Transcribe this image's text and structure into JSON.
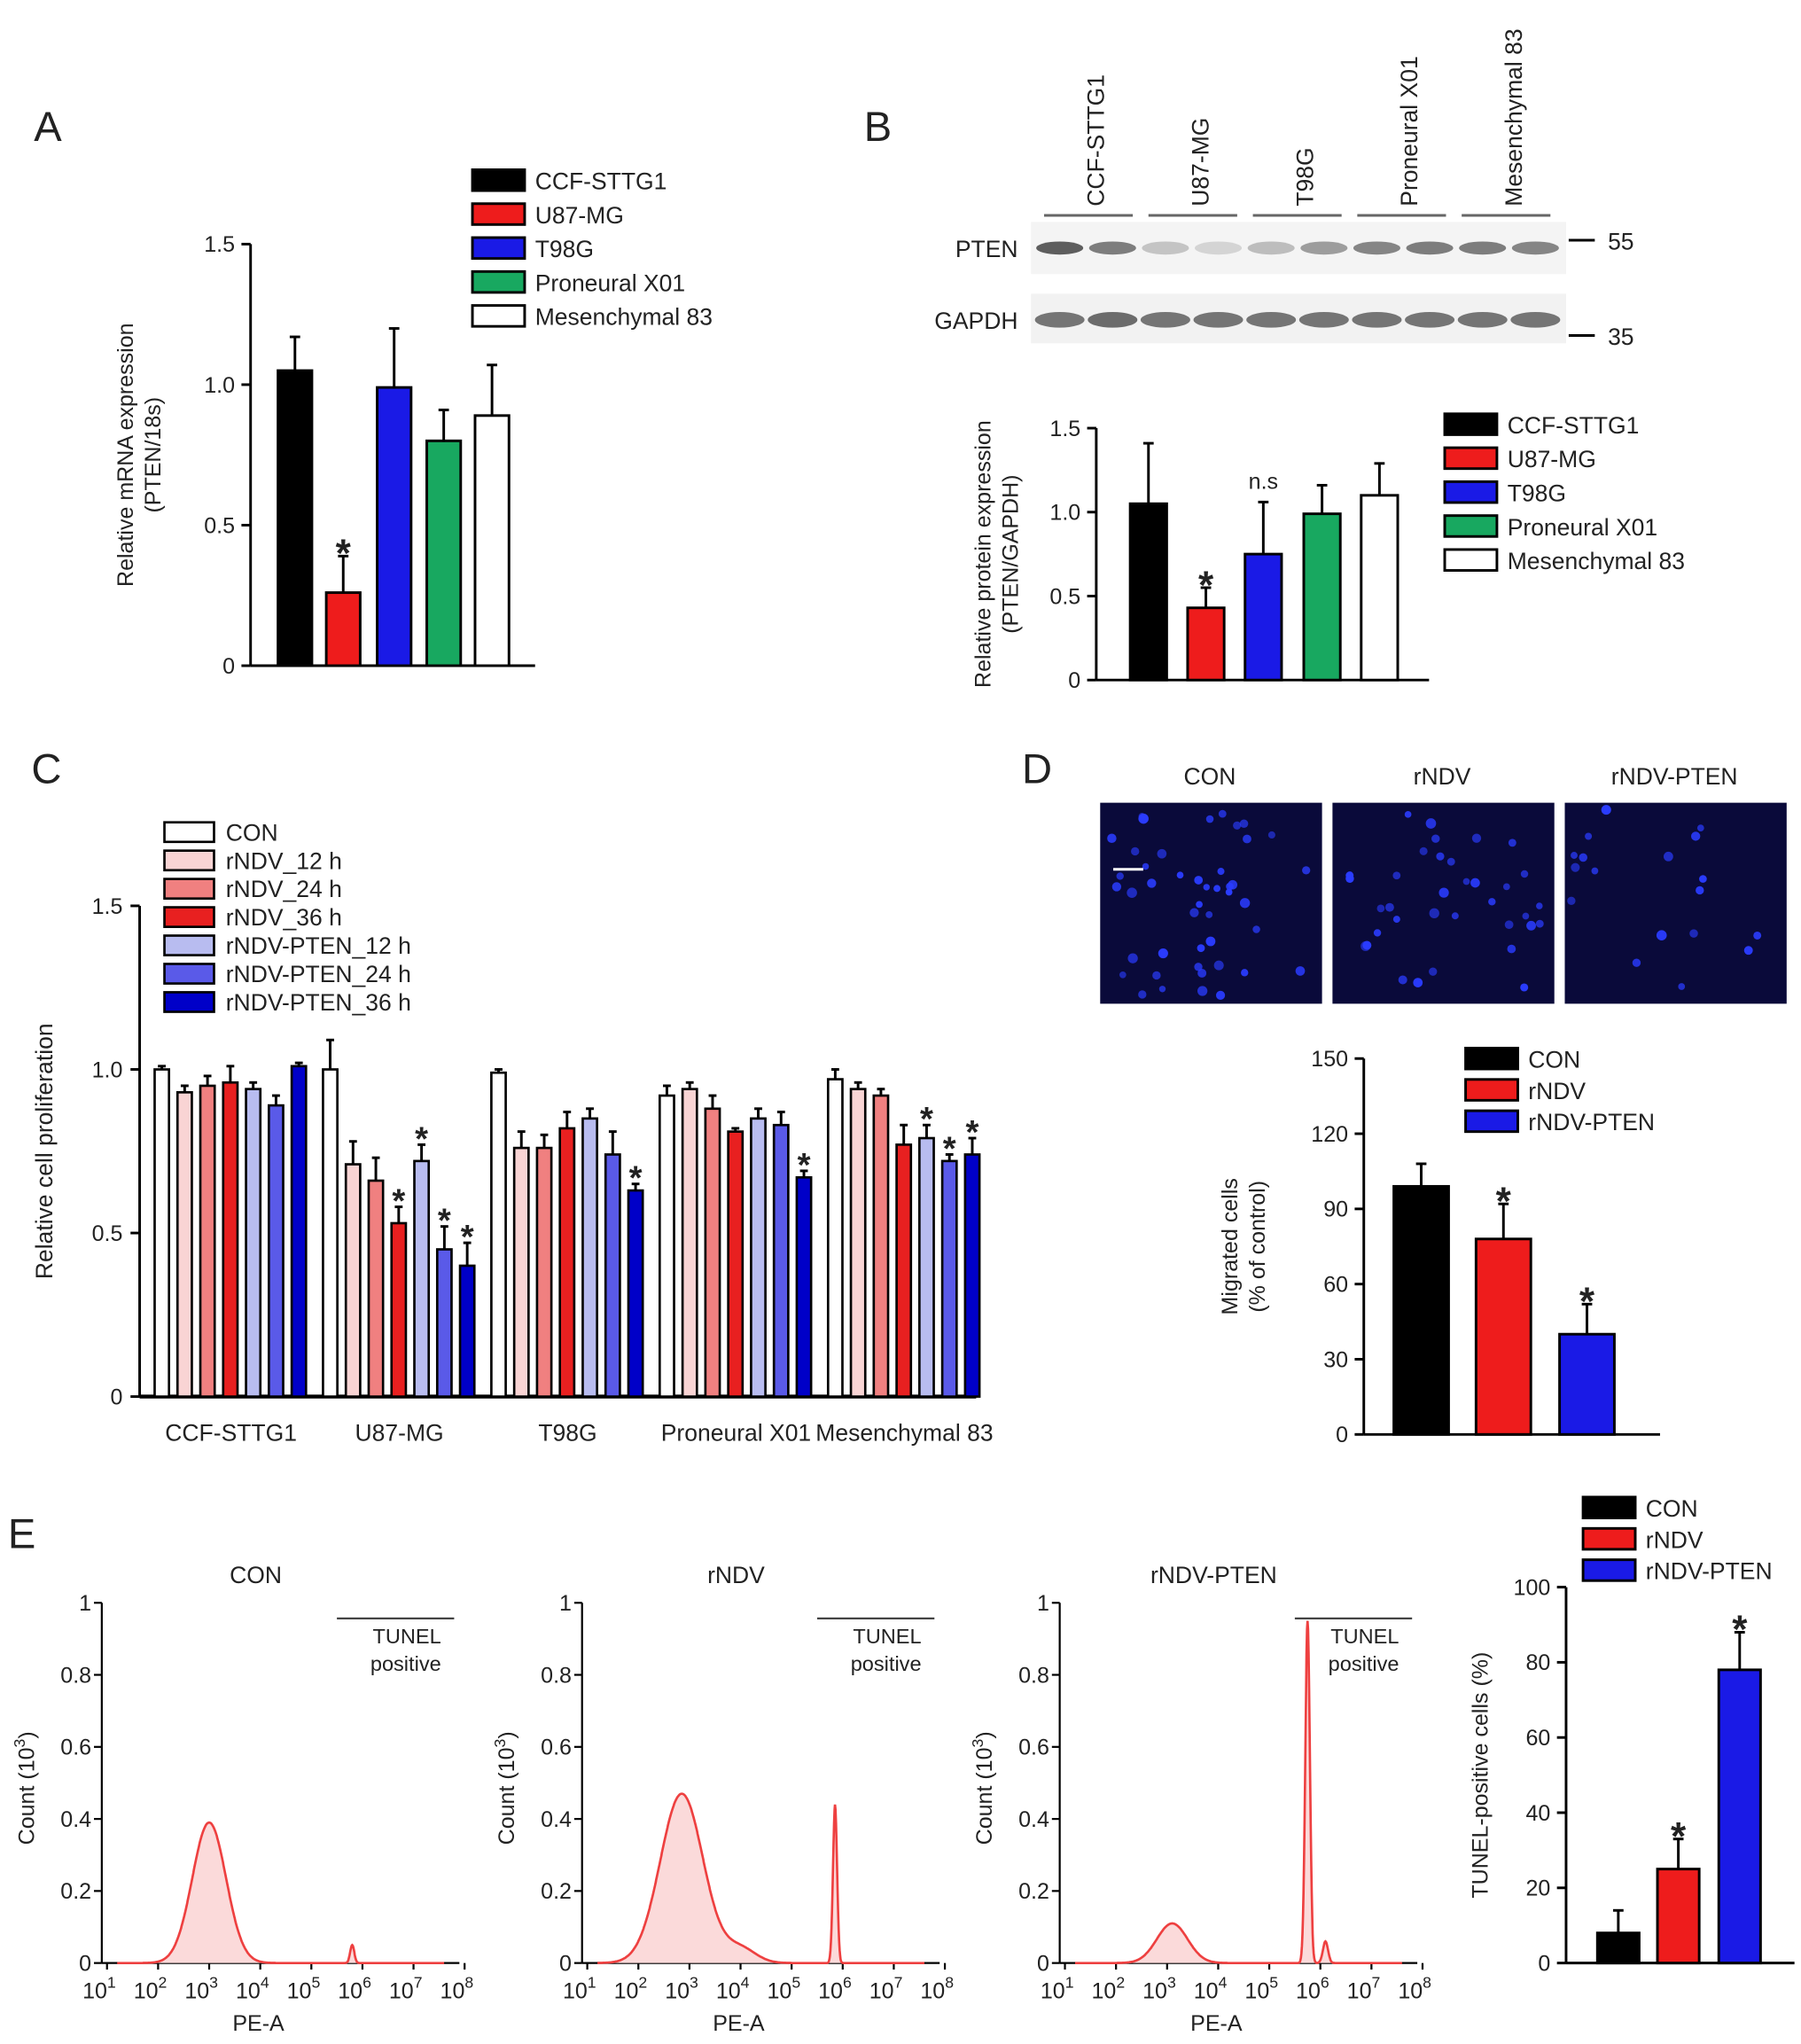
{
  "panels": {
    "A": {
      "letter": "A"
    },
    "B": {
      "letter": "B"
    },
    "C": {
      "letter": "C"
    },
    "D": {
      "letter": "D"
    },
    "E": {
      "letter": "E"
    }
  },
  "western_blot": {
    "lanes": [
      "CCF-STTG1",
      "U87-MG",
      "T98G",
      "Proneural X01",
      "Mesenchymal 83"
    ],
    "rows": [
      "PTEN",
      "GAPDH"
    ],
    "markers": [
      "55",
      "35"
    ],
    "pten_band_intensity": [
      0.95,
      0.75,
      0.3,
      0.2,
      0.35,
      0.55,
      0.7,
      0.75,
      0.75,
      0.7
    ],
    "gapdh_band_intensity": [
      0.8,
      0.85,
      0.8,
      0.8,
      0.8,
      0.8,
      0.8,
      0.8,
      0.8,
      0.8
    ]
  },
  "microscopy": {
    "titles": [
      "CON",
      "rNDV",
      "rNDV-PTEN"
    ],
    "cell_counts": [
      45,
      35,
      18
    ]
  },
  "chart_data": [
    {
      "id": "A",
      "type": "bar",
      "categories": [
        "CCF-STTG1",
        "U87-MG",
        "T98G",
        "Proneural X01",
        "Mesenchymal 83"
      ],
      "values": [
        1.05,
        0.26,
        0.99,
        0.8,
        0.89
      ],
      "errors": [
        0.12,
        0.13,
        0.21,
        0.11,
        0.18
      ],
      "annotations": [
        "",
        "*",
        "",
        "",
        ""
      ],
      "colors": [
        "#000000",
        "#ee1c1c",
        "#1a1ae6",
        "#18a860",
        "#ffffff"
      ],
      "ylabel": [
        "Relative mRNA expression",
        "(PTEN/18s)"
      ],
      "ylim": [
        0,
        1.5
      ],
      "yticks": [
        "0",
        "0.5",
        "1.0",
        "1.5"
      ],
      "ytick_values": [
        0,
        0.5,
        1.0,
        1.5
      ],
      "legend": [
        "CCF-STTG1",
        "U87-MG",
        "T98G",
        "Proneural X01",
        "Mesenchymal 83"
      ],
      "legend_position": "top-right"
    },
    {
      "id": "B",
      "type": "bar",
      "categories": [
        "CCF-STTG1",
        "U87-MG",
        "T98G",
        "Proneural X01",
        "Mesenchymal 83"
      ],
      "values": [
        1.05,
        0.43,
        0.75,
        0.99,
        1.1
      ],
      "errors": [
        0.36,
        0.12,
        0.31,
        0.17,
        0.19
      ],
      "annotations": [
        "",
        "*",
        "n.s",
        "",
        ""
      ],
      "colors": [
        "#000000",
        "#ee1c1c",
        "#1a1ae6",
        "#18a860",
        "#ffffff"
      ],
      "ylabel": [
        "Relative protein expression",
        "(PTEN/GAPDH)"
      ],
      "ylim": [
        0,
        1.5
      ],
      "yticks": [
        "0",
        "0.5",
        "1.0",
        "1.5"
      ],
      "ytick_values": [
        0,
        0.5,
        1.0,
        1.5
      ],
      "legend": [
        "CCF-STTG1",
        "U87-MG",
        "T98G",
        "Proneural X01",
        "Mesenchymal 83"
      ],
      "legend_position": "right"
    },
    {
      "id": "C",
      "type": "bar",
      "categories": [
        "CCF-STTG1",
        "U87-MG",
        "T98G",
        "Proneural X01",
        "Mesenchymal 83"
      ],
      "series": [
        {
          "name": "CON",
          "color": "#ffffff",
          "values": [
            1.0,
            1.0,
            0.99,
            0.92,
            0.97
          ],
          "errors": [
            0.01,
            0.09,
            0.01,
            0.03,
            0.03
          ],
          "stars": [
            false,
            false,
            false,
            false,
            false
          ]
        },
        {
          "name": "rNDV_12 h",
          "color": "#f9d4d4",
          "values": [
            0.93,
            0.71,
            0.76,
            0.94,
            0.94
          ],
          "errors": [
            0.02,
            0.07,
            0.05,
            0.02,
            0.02
          ],
          "stars": [
            false,
            false,
            false,
            false,
            false
          ]
        },
        {
          "name": "rNDV_24 h",
          "color": "#f08080",
          "values": [
            0.95,
            0.66,
            0.76,
            0.88,
            0.92
          ],
          "errors": [
            0.03,
            0.07,
            0.04,
            0.04,
            0.02
          ],
          "stars": [
            false,
            false,
            false,
            false,
            false
          ]
        },
        {
          "name": "rNDV_36 h",
          "color": "#e82020",
          "values": [
            0.96,
            0.53,
            0.82,
            0.81,
            0.77
          ],
          "errors": [
            0.05,
            0.05,
            0.05,
            0.01,
            0.06
          ],
          "stars": [
            false,
            true,
            false,
            false,
            false
          ]
        },
        {
          "name": "rNDV-PTEN_12 h",
          "color": "#b8bcf0",
          "values": [
            0.94,
            0.72,
            0.85,
            0.85,
            0.79
          ],
          "errors": [
            0.02,
            0.05,
            0.03,
            0.03,
            0.04
          ],
          "stars": [
            false,
            true,
            false,
            false,
            true
          ]
        },
        {
          "name": "rNDV-PTEN_24 h",
          "color": "#5a5ae8",
          "values": [
            0.89,
            0.45,
            0.74,
            0.83,
            0.72
          ],
          "errors": [
            0.03,
            0.07,
            0.07,
            0.04,
            0.02
          ],
          "stars": [
            false,
            true,
            false,
            false,
            true
          ]
        },
        {
          "name": "rNDV-PTEN_36 h",
          "color": "#0000c8",
          "values": [
            1.01,
            0.4,
            0.63,
            0.67,
            0.74
          ],
          "errors": [
            0.01,
            0.07,
            0.02,
            0.02,
            0.05
          ],
          "stars": [
            false,
            true,
            true,
            true,
            true
          ]
        }
      ],
      "ylabel": [
        "Relative cell proliferation"
      ],
      "ylim": [
        0,
        1.5
      ],
      "yticks": [
        "0",
        "0.5",
        "1.0",
        "1.5"
      ],
      "ytick_values": [
        0,
        0.5,
        1.0,
        1.5
      ],
      "legend_position": "top-left"
    },
    {
      "id": "D",
      "type": "bar",
      "categories": [
        "CON",
        "rNDV",
        "rNDV-PTEN"
      ],
      "values": [
        99,
        78,
        40
      ],
      "errors": [
        9,
        14,
        12
      ],
      "annotations": [
        "",
        "*",
        "*"
      ],
      "colors": [
        "#000000",
        "#ee1c1c",
        "#1a1ae6"
      ],
      "ylabel": [
        "Migrated cells",
        "(% of control)"
      ],
      "ylim": [
        0,
        150
      ],
      "yticks": [
        "0",
        "30",
        "60",
        "90",
        "120",
        "150"
      ],
      "ytick_values": [
        0,
        30,
        60,
        90,
        120,
        150
      ],
      "legend": [
        "CON",
        "rNDV",
        "rNDV-PTEN"
      ],
      "legend_position": "top-right"
    },
    {
      "id": "E-hist",
      "type": "area",
      "panels": [
        {
          "title": "CON",
          "peaks": [
            {
              "center_log10": 3.0,
              "height": 0.39,
              "width": 0.33
            },
            {
              "center_log10": 5.8,
              "height": 0.05,
              "width": 0.04
            }
          ]
        },
        {
          "title": "rNDV",
          "peaks": [
            {
              "center_log10": 2.85,
              "height": 0.47,
              "width": 0.42
            },
            {
              "center_log10": 4.0,
              "height": 0.04,
              "width": 0.3
            },
            {
              "center_log10": 5.85,
              "height": 0.44,
              "width": 0.04
            }
          ]
        },
        {
          "title": "rNDV-PTEN",
          "peaks": [
            {
              "center_log10": 3.1,
              "height": 0.11,
              "width": 0.3
            },
            {
              "center_log10": 5.75,
              "height": 0.95,
              "width": 0.045
            },
            {
              "center_log10": 6.1,
              "height": 0.06,
              "width": 0.05
            }
          ]
        }
      ],
      "gate_label": [
        "TUNEL",
        "positive"
      ],
      "gate_range_log10": [
        5.5,
        8.9
      ],
      "xlabel": "PE-A",
      "ylabel": "Count (10",
      "ylabel_sup": "3",
      "ylabel_end": ")",
      "xlim_log10": [
        1,
        8
      ],
      "xticks": [
        "1",
        "2",
        "3",
        "4",
        "5",
        "6",
        "7",
        "8"
      ],
      "xtick_base": "10",
      "ylim": [
        0,
        1
      ],
      "yticks": [
        "0",
        "0.2",
        "0.4",
        "0.6",
        "0.8",
        "1"
      ],
      "ytick_values": [
        0,
        0.2,
        0.4,
        0.6,
        0.8,
        1
      ],
      "color": "#ee4040",
      "fill": "#fbdada"
    },
    {
      "id": "E-bar",
      "type": "bar",
      "categories": [
        "CON",
        "rNDV",
        "rNDV-PTEN"
      ],
      "values": [
        8,
        25,
        78
      ],
      "errors": [
        6,
        8,
        10
      ],
      "annotations": [
        "",
        "*",
        "*"
      ],
      "colors": [
        "#000000",
        "#ee1c1c",
        "#1a1ae6"
      ],
      "ylabel": [
        "TUNEL-positive cells  (%)"
      ],
      "ylim": [
        0,
        100
      ],
      "yticks": [
        "0",
        "20",
        "40",
        "60",
        "80",
        "100"
      ],
      "ytick_values": [
        0,
        20,
        40,
        60,
        80,
        100
      ],
      "legend": [
        "CON",
        "rNDV",
        "rNDV-PTEN"
      ],
      "legend_position": "top-right"
    }
  ]
}
